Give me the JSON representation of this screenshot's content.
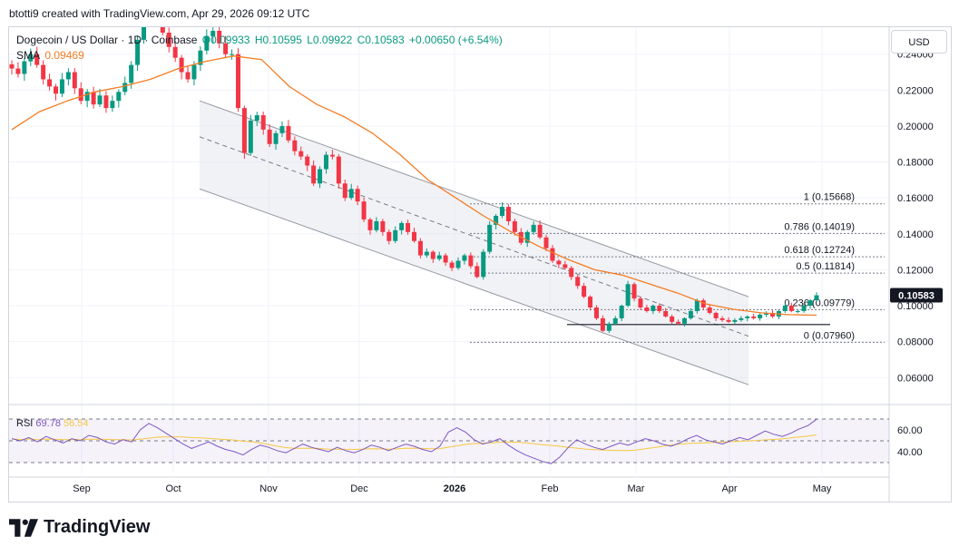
{
  "attribution": "btotti9 created with TradingView.com, Apr 29, 2026 09:12 UTC",
  "legend": {
    "symbol": "Dogecoin / US Dollar · 1D · Coinbase",
    "open": "O0.09933",
    "high": "H0.10595",
    "low": "L0.09922",
    "close": "C0.10583",
    "change": "+0.00650 (+6.54%)",
    "sma_label": "SMA",
    "sma_value": "0.09469"
  },
  "rsi_legend": {
    "label": "RSI",
    "value": "69.78",
    "ma": "56.54"
  },
  "currency": "USD",
  "brand": "TradingView",
  "chart_data": {
    "type": "candlestick",
    "price_axis": {
      "ticks": [
        0.06,
        0.08,
        0.1,
        0.12,
        0.14,
        0.16,
        0.18,
        0.2,
        0.22,
        0.24
      ],
      "tick_labels": [
        "0.06000",
        "0.08000",
        "0.10000",
        "0.12000",
        "0.14000",
        "0.16000",
        "0.18000",
        "0.20000",
        "0.22000",
        "0.24000"
      ],
      "range": [
        0.047,
        0.255
      ]
    },
    "time_axis": {
      "labels": [
        "Sep",
        "Oct",
        "Nov",
        "Dec",
        "2026",
        "Feb",
        "Mar",
        "Apr",
        "May"
      ]
    },
    "last_price": {
      "value": 0.10583,
      "label": "0.10583"
    },
    "close_path": [
      0.232,
      0.229,
      0.236,
      0.24,
      0.234,
      0.226,
      0.222,
      0.218,
      0.226,
      0.23,
      0.221,
      0.214,
      0.219,
      0.212,
      0.217,
      0.21,
      0.214,
      0.219,
      0.224,
      0.234,
      0.248,
      0.26,
      0.263,
      0.258,
      0.252,
      0.244,
      0.238,
      0.23,
      0.226,
      0.234,
      0.242,
      0.25,
      0.253,
      0.246,
      0.24,
      0.24,
      0.21,
      0.185,
      0.203,
      0.206,
      0.198,
      0.19,
      0.196,
      0.2,
      0.192,
      0.186,
      0.183,
      0.178,
      0.168,
      0.176,
      0.184,
      0.183,
      0.168,
      0.16,
      0.165,
      0.158,
      0.148,
      0.142,
      0.147,
      0.141,
      0.136,
      0.142,
      0.146,
      0.141,
      0.136,
      0.128,
      0.13,
      0.126,
      0.128,
      0.124,
      0.121,
      0.125,
      0.128,
      0.122,
      0.116,
      0.13,
      0.145,
      0.15,
      0.155,
      0.147,
      0.141,
      0.135,
      0.141,
      0.145,
      0.138,
      0.132,
      0.125,
      0.123,
      0.121,
      0.116,
      0.111,
      0.105,
      0.099,
      0.093,
      0.086,
      0.09,
      0.093,
      0.1,
      0.112,
      0.104,
      0.099,
      0.097,
      0.1,
      0.097,
      0.094,
      0.091,
      0.09,
      0.093,
      0.097,
      0.103,
      0.099,
      0.096,
      0.093,
      0.092,
      0.091,
      0.092,
      0.093,
      0.094,
      0.093,
      0.095,
      0.096,
      0.094,
      0.097,
      0.1,
      0.097,
      0.097,
      0.1,
      0.103,
      0.1058
    ],
    "sma": {
      "name": "SMA",
      "value": 0.09469,
      "values": [
        0.198,
        0.208,
        0.214,
        0.219,
        0.222,
        0.226,
        0.232,
        0.236,
        0.239,
        0.237,
        0.222,
        0.212,
        0.205,
        0.196,
        0.184,
        0.17,
        0.16,
        0.15,
        0.141,
        0.133,
        0.126,
        0.12,
        0.117,
        0.112,
        0.107,
        0.101,
        0.098,
        0.096,
        0.095,
        0.0947
      ]
    },
    "rsi": {
      "name": "RSI",
      "value": 69.78,
      "ma": 56.54,
      "levels": [
        70,
        50,
        30
      ],
      "tick_labels": [
        "60.00",
        "40.00"
      ],
      "values": [
        52,
        50,
        53,
        49,
        54,
        51,
        48,
        52,
        50,
        55,
        53,
        49,
        47,
        51,
        49,
        60,
        66,
        62,
        57,
        52,
        47,
        43,
        46,
        49,
        45,
        42,
        40,
        37,
        42,
        46,
        44,
        41,
        39,
        43,
        47,
        44,
        42,
        40,
        44,
        41,
        39,
        42,
        46,
        44,
        41,
        44,
        47,
        45,
        42,
        40,
        45,
        58,
        62,
        58,
        51,
        47,
        49,
        52,
        46,
        41,
        37,
        34,
        31,
        29,
        35,
        44,
        51,
        47,
        44,
        42,
        45,
        48,
        46,
        49,
        52,
        50,
        47,
        45,
        48,
        52,
        55,
        51,
        49,
        47,
        50,
        53,
        51,
        55,
        59,
        56,
        54,
        57,
        61,
        64,
        69.78
      ]
    },
    "fibonacci": [
      {
        "ratio": "1",
        "value": 0.15668,
        "label": "1 (0.15668)"
      },
      {
        "ratio": "0.786",
        "value": 0.14019,
        "label": "0.786 (0.14019)"
      },
      {
        "ratio": "0.618",
        "value": 0.12724,
        "label": "0.618 (0.12724)"
      },
      {
        "ratio": "0.5",
        "value": 0.11814,
        "label": "0.5 (0.11814)"
      },
      {
        "ratio": "0.236",
        "value": 0.09779,
        "label": "0.236 (0.09779)"
      },
      {
        "ratio": "0",
        "value": 0.0796,
        "label": "0 (0.07960)"
      }
    ],
    "support_line": 0.0895,
    "channel": {
      "upper": [
        0.214,
        0.105
      ],
      "middle": [
        0.194,
        0.083
      ],
      "lower": [
        0.165,
        0.056
      ]
    },
    "colors": {
      "up": "#089981",
      "down": "#f23645",
      "sma": "#f57c24",
      "rsi": "#7e57c2",
      "rsi_ma": "#f5c842",
      "channel_fill": "#e0e3eb",
      "last_price_bg": "#131722",
      "chart_bg": "#ffffff",
      "grid": "#f0f3fa"
    },
    "grid": true
  }
}
